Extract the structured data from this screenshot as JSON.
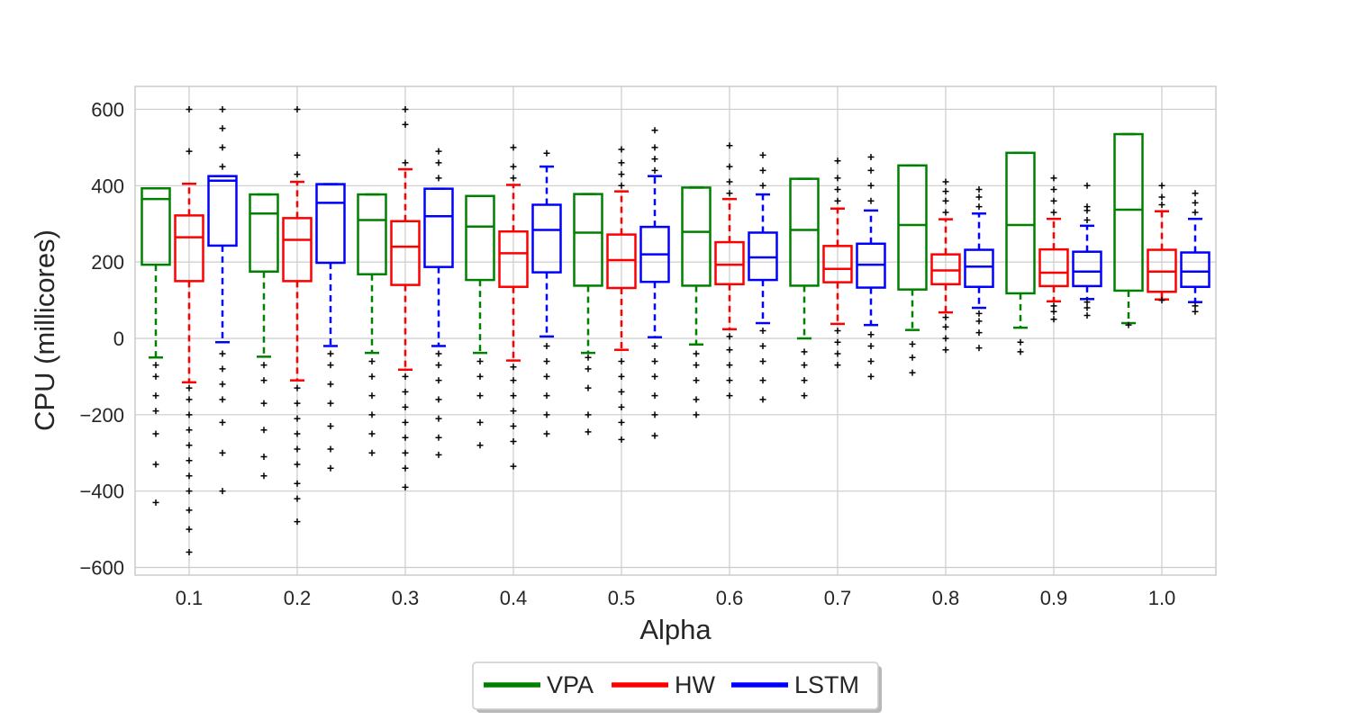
{
  "chart_data": {
    "type": "boxplot",
    "title": "",
    "xlabel": "Alpha",
    "ylabel": "CPU (millicores)",
    "ylim": [
      -620,
      660
    ],
    "yticks": [
      -600,
      -400,
      -200,
      0,
      200,
      400,
      600
    ],
    "ytick_labels": [
      "−600",
      "−400",
      "−200",
      "0",
      "200",
      "400",
      "600"
    ],
    "categories": [
      "0.1",
      "0.2",
      "0.3",
      "0.4",
      "0.5",
      "0.6",
      "0.7",
      "0.8",
      "0.9",
      "1.0"
    ],
    "grid": true,
    "legend_position": "bottom-center",
    "series": [
      {
        "name": "VPA",
        "color": "#008000",
        "boxes": [
          {
            "whislo": -50,
            "q1": 193,
            "med": 365,
            "q3": 393,
            "whishi": 393,
            "fliers_low": [
              -430,
              -330,
              -250,
              -190,
              -150,
              -100,
              -70
            ],
            "fliers_high": []
          },
          {
            "whislo": -48,
            "q1": 175,
            "med": 327,
            "q3": 377,
            "whishi": 377,
            "fliers_low": [
              -360,
              -310,
              -240,
              -170,
              -110,
              -70
            ],
            "fliers_high": []
          },
          {
            "whislo": -38,
            "q1": 168,
            "med": 310,
            "q3": 377,
            "whishi": 377,
            "fliers_low": [
              -300,
              -250,
              -200,
              -150,
              -100,
              -60
            ],
            "fliers_high": []
          },
          {
            "whislo": -38,
            "q1": 153,
            "med": 293,
            "q3": 373,
            "whishi": 373,
            "fliers_low": [
              -280,
              -220,
              -150,
              -100,
              -60
            ],
            "fliers_high": []
          },
          {
            "whislo": -38,
            "q1": 138,
            "med": 277,
            "q3": 378,
            "whishi": 378,
            "fliers_low": [
              -245,
              -200,
              -130,
              -80,
              -50
            ],
            "fliers_high": []
          },
          {
            "whislo": -16,
            "q1": 138,
            "med": 279,
            "q3": 395,
            "whishi": 395,
            "fliers_low": [
              -200,
              -160,
              -110,
              -70,
              -40
            ],
            "fliers_high": []
          },
          {
            "whislo": 0,
            "q1": 138,
            "med": 284,
            "q3": 418,
            "whishi": 418,
            "fliers_low": [
              -150,
              -110,
              -70,
              -35
            ],
            "fliers_high": []
          },
          {
            "whislo": 22,
            "q1": 128,
            "med": 297,
            "q3": 453,
            "whishi": 453,
            "fliers_low": [
              -90,
              -50,
              -15
            ],
            "fliers_high": []
          },
          {
            "whislo": 28,
            "q1": 118,
            "med": 297,
            "q3": 486,
            "whishi": 486,
            "fliers_low": [
              -35,
              -10
            ],
            "fliers_high": []
          },
          {
            "whislo": 40,
            "q1": 125,
            "med": 337,
            "q3": 535,
            "whishi": 535,
            "fliers_low": [
              35
            ],
            "fliers_high": []
          }
        ]
      },
      {
        "name": "HW",
        "color": "#ff0000",
        "boxes": [
          {
            "whislo": -115,
            "q1": 150,
            "med": 265,
            "q3": 322,
            "whishi": 405,
            "fliers_low": [
              -560,
              -500,
              -450,
              -400,
              -360,
              -320,
              -280,
              -240,
              -200,
              -160,
              -130
            ],
            "fliers_high": [
              490,
              600
            ]
          },
          {
            "whislo": -110,
            "q1": 150,
            "med": 258,
            "q3": 315,
            "whishi": 410,
            "fliers_low": [
              -480,
              -420,
              -380,
              -330,
              -290,
              -250,
              -210,
              -170,
              -130
            ],
            "fliers_high": [
              430,
              480,
              600
            ]
          },
          {
            "whislo": -82,
            "q1": 140,
            "med": 240,
            "q3": 307,
            "whishi": 443,
            "fliers_low": [
              -390,
              -340,
              -300,
              -260,
              -220,
              -180,
              -140,
              -100
            ],
            "fliers_high": [
              460,
              560,
              600
            ]
          },
          {
            "whislo": -58,
            "q1": 135,
            "med": 223,
            "q3": 280,
            "whishi": 402,
            "fliers_low": [
              -335,
              -270,
              -230,
              -190,
              -150,
              -110,
              -75
            ],
            "fliers_high": [
              420,
              450,
              500
            ]
          },
          {
            "whislo": -30,
            "q1": 132,
            "med": 205,
            "q3": 272,
            "whishi": 385,
            "fliers_low": [
              -265,
              -220,
              -180,
              -140,
              -100,
              -60
            ],
            "fliers_high": [
              400,
              430,
              460,
              495
            ]
          },
          {
            "whislo": 24,
            "q1": 142,
            "med": 193,
            "q3": 252,
            "whishi": 365,
            "fliers_low": [
              -150,
              -110,
              -70,
              -30,
              5
            ],
            "fliers_high": [
              380,
              410,
              450,
              505
            ]
          },
          {
            "whislo": 38,
            "q1": 147,
            "med": 182,
            "q3": 242,
            "whishi": 340,
            "fliers_low": [
              -70,
              -40,
              -10,
              20
            ],
            "fliers_high": [
              360,
              390,
              420,
              465
            ]
          },
          {
            "whislo": 68,
            "q1": 142,
            "med": 178,
            "q3": 220,
            "whishi": 312,
            "fliers_low": [
              -30,
              0,
              30,
              55
            ],
            "fliers_high": [
              330,
              360,
              385,
              410
            ]
          },
          {
            "whislo": 97,
            "q1": 137,
            "med": 172,
            "q3": 233,
            "whishi": 313,
            "fliers_low": [
              50,
              70,
              85
            ],
            "fliers_high": [
              330,
              360,
              390,
              420
            ]
          },
          {
            "whislo": 102,
            "q1": 122,
            "med": 175,
            "q3": 232,
            "whishi": 333,
            "fliers_low": [
              100
            ],
            "fliers_high": [
              350,
              370,
              400
            ]
          }
        ]
      },
      {
        "name": "LSTM",
        "color": "#0000ff",
        "boxes": [
          {
            "whislo": -10,
            "q1": 243,
            "med": 413,
            "q3": 425,
            "whishi": 425,
            "fliers_low": [
              -400,
              -300,
              -220,
              -160,
              -120,
              -80,
              -40
            ],
            "fliers_high": [
              450,
              500,
              550,
              600
            ]
          },
          {
            "whislo": -20,
            "q1": 198,
            "med": 355,
            "q3": 404,
            "whishi": 404,
            "fliers_low": [
              -340,
              -290,
              -230,
              -170,
              -120,
              -70,
              -40
            ],
            "fliers_high": []
          },
          {
            "whislo": -20,
            "q1": 187,
            "med": 320,
            "q3": 392,
            "whishi": 392,
            "fliers_low": [
              -305,
              -260,
              -210,
              -160,
              -110,
              -70,
              -40
            ],
            "fliers_high": [
              420,
              460,
              490
            ]
          },
          {
            "whislo": 5,
            "q1": 173,
            "med": 284,
            "q3": 350,
            "whishi": 450,
            "fliers_low": [
              -250,
              -200,
              -150,
              -100,
              -60,
              -20
            ],
            "fliers_high": [
              485
            ]
          },
          {
            "whislo": 3,
            "q1": 148,
            "med": 220,
            "q3": 292,
            "whishi": 425,
            "fliers_low": [
              -255,
              -200,
              -150,
              -100,
              -60,
              -20
            ],
            "fliers_high": [
              440,
              470,
              500,
              545
            ]
          },
          {
            "whislo": 40,
            "q1": 153,
            "med": 212,
            "q3": 277,
            "whishi": 377,
            "fliers_low": [
              -160,
              -110,
              -60,
              -20,
              20
            ],
            "fliers_high": [
              400,
              440,
              480
            ]
          },
          {
            "whislo": 35,
            "q1": 133,
            "med": 193,
            "q3": 248,
            "whishi": 335,
            "fliers_low": [
              -100,
              -60,
              -20,
              10
            ],
            "fliers_high": [
              360,
              400,
              440,
              475
            ]
          },
          {
            "whislo": 80,
            "q1": 135,
            "med": 188,
            "q3": 232,
            "whishi": 327,
            "fliers_low": [
              -25,
              15,
              45,
              65
            ],
            "fliers_high": [
              345,
              370,
              390
            ]
          },
          {
            "whislo": 103,
            "q1": 137,
            "med": 175,
            "q3": 227,
            "whishi": 295,
            "fliers_low": [
              60,
              80,
              95
            ],
            "fliers_high": [
              310,
              335,
              345,
              400
            ]
          },
          {
            "whislo": 95,
            "q1": 135,
            "med": 175,
            "q3": 225,
            "whishi": 313,
            "fliers_low": [
              70,
              85
            ],
            "fliers_high": [
              330,
              355,
              380
            ]
          }
        ]
      }
    ]
  }
}
